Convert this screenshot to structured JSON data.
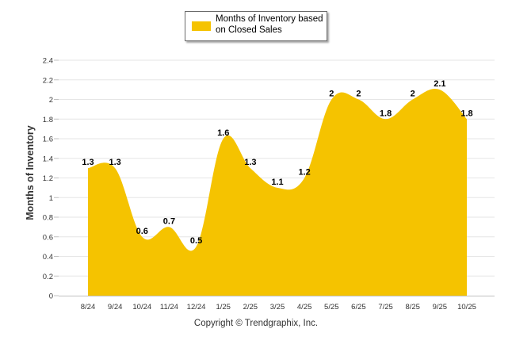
{
  "chart_data": {
    "type": "area",
    "categories": [
      "8/24",
      "9/24",
      "10/24",
      "11/24",
      "12/24",
      "1/25",
      "2/25",
      "3/25",
      "4/25",
      "5/25",
      "6/25",
      "7/25",
      "8/25",
      "9/25",
      "10/25"
    ],
    "series": [
      {
        "name": "Months of Inventory based on Closed Sales",
        "values": [
          1.3,
          1.3,
          0.6,
          0.7,
          0.5,
          1.6,
          1.3,
          1.1,
          1.2,
          2,
          2,
          1.8,
          2,
          2.1,
          1.8
        ],
        "labels": [
          "1.3",
          "1.3",
          "0.6",
          "0.7",
          "0.5",
          "1.6",
          "1.3",
          "1.1",
          "1.2",
          "2",
          "2",
          "1.8",
          "2",
          "2.1",
          "1.8"
        ]
      }
    ],
    "yticks": [
      "0",
      "0.2",
      "0.4",
      "0.6",
      "0.8",
      "1",
      "1.2",
      "1.4",
      "1.6",
      "1.8",
      "2",
      "2.2",
      "2.4"
    ],
    "ylim": [
      0,
      2.4
    ],
    "ylabel": "Months of Inventory",
    "xlabel": "",
    "legend_position": "top-center",
    "grid": true
  },
  "legend": {
    "label": "Months of Inventory based on Closed Sales"
  },
  "footer": {
    "copyright": "Copyright © Trendgraphix, Inc."
  },
  "colors": {
    "fill": "#f5c300",
    "grid": "#e6e6e6",
    "axis": "#c0c0c0"
  }
}
